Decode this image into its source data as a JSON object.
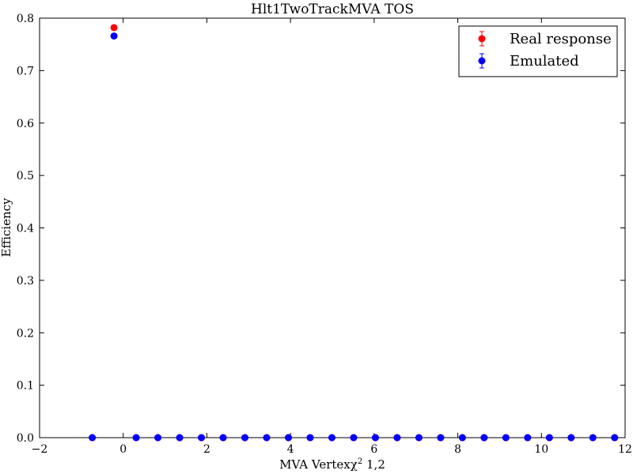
{
  "chart_data": {
    "type": "scatter",
    "title": "Hlt1TwoTrackMVA TOS",
    "xlabel_main": "MVA Vertex",
    "xlabel_chi": "χ",
    "xlabel_sup": "2",
    "xlabel_tail": " 1,2",
    "ylabel": "Efficiency",
    "xlim": [
      -2,
      12
    ],
    "ylim": [
      0,
      0.8
    ],
    "xticks": [
      -2,
      0,
      2,
      4,
      6,
      8,
      10,
      12
    ],
    "xtick_labels": [
      "−2",
      "0",
      "2",
      "4",
      "6",
      "8",
      "10",
      "12"
    ],
    "yticks": [
      0.0,
      0.1,
      0.2,
      0.3,
      0.4,
      0.5,
      0.6,
      0.7,
      0.8
    ],
    "ytick_labels": [
      "0.0",
      "0.1",
      "0.2",
      "0.3",
      "0.4",
      "0.5",
      "0.6",
      "0.7",
      "0.8"
    ],
    "grid": false,
    "legend_position": "top-right",
    "series": [
      {
        "name": "Real response",
        "color": "#ff0000",
        "x": [
          -0.74,
          -0.22,
          0.31,
          0.83,
          1.35,
          1.87,
          2.39,
          2.91,
          3.43,
          3.95,
          4.47,
          4.99,
          5.51,
          6.03,
          6.55,
          7.07,
          7.59,
          8.11,
          8.63,
          9.15,
          9.67,
          10.19,
          10.71,
          11.23,
          11.75
        ],
        "y": [
          0,
          0.782,
          0,
          0,
          0,
          0,
          0,
          0,
          0,
          0,
          0,
          0,
          0,
          0,
          0,
          0,
          0,
          0,
          0,
          0,
          0,
          0,
          0,
          0,
          0
        ]
      },
      {
        "name": "Emulated",
        "color": "#0000ff",
        "x": [
          -0.74,
          -0.22,
          0.31,
          0.83,
          1.35,
          1.87,
          2.39,
          2.91,
          3.43,
          3.95,
          4.47,
          4.99,
          5.51,
          6.03,
          6.55,
          7.07,
          7.59,
          8.11,
          8.63,
          9.15,
          9.67,
          10.19,
          10.71,
          11.23,
          11.75
        ],
        "y": [
          0,
          0.766,
          0,
          0,
          0,
          0,
          0,
          0,
          0,
          0,
          0,
          0,
          0,
          0,
          0,
          0,
          0,
          0,
          0,
          0,
          0,
          0,
          0,
          0,
          0
        ]
      }
    ]
  }
}
